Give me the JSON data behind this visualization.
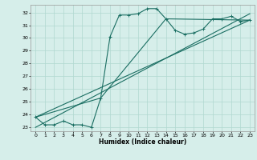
{
  "xlabel": "Humidex (Indice chaleur)",
  "xlim": [
    -0.5,
    23.5
  ],
  "ylim": [
    22.7,
    32.6
  ],
  "xticks": [
    0,
    1,
    2,
    3,
    4,
    5,
    6,
    7,
    8,
    9,
    10,
    11,
    12,
    13,
    14,
    15,
    16,
    17,
    18,
    19,
    20,
    21,
    22,
    23
  ],
  "yticks": [
    23,
    24,
    25,
    26,
    27,
    28,
    29,
    30,
    31,
    32
  ],
  "background_color": "#d6eeea",
  "grid_color": "#b0d8d0",
  "line_color": "#1a6e62",
  "main_series_x": [
    0,
    1,
    2,
    3,
    4,
    5,
    6,
    7,
    8,
    9,
    10,
    11,
    12,
    13,
    14,
    15,
    16,
    17,
    18,
    19,
    20,
    21,
    22,
    23
  ],
  "main_series_y": [
    23.8,
    23.2,
    23.2,
    23.5,
    23.2,
    23.2,
    23.0,
    25.3,
    30.1,
    31.8,
    31.8,
    31.9,
    32.3,
    32.3,
    31.5,
    30.6,
    30.3,
    30.4,
    30.7,
    31.5,
    31.5,
    31.7,
    31.3,
    31.4
  ],
  "line1_x": [
    0,
    7,
    14,
    23
  ],
  "line1_y": [
    23.8,
    25.3,
    31.5,
    31.4
  ],
  "line2_x": [
    0,
    23
  ],
  "line2_y": [
    23.8,
    31.4
  ],
  "line3_x": [
    0,
    23
  ],
  "line3_y": [
    23.0,
    31.9
  ]
}
